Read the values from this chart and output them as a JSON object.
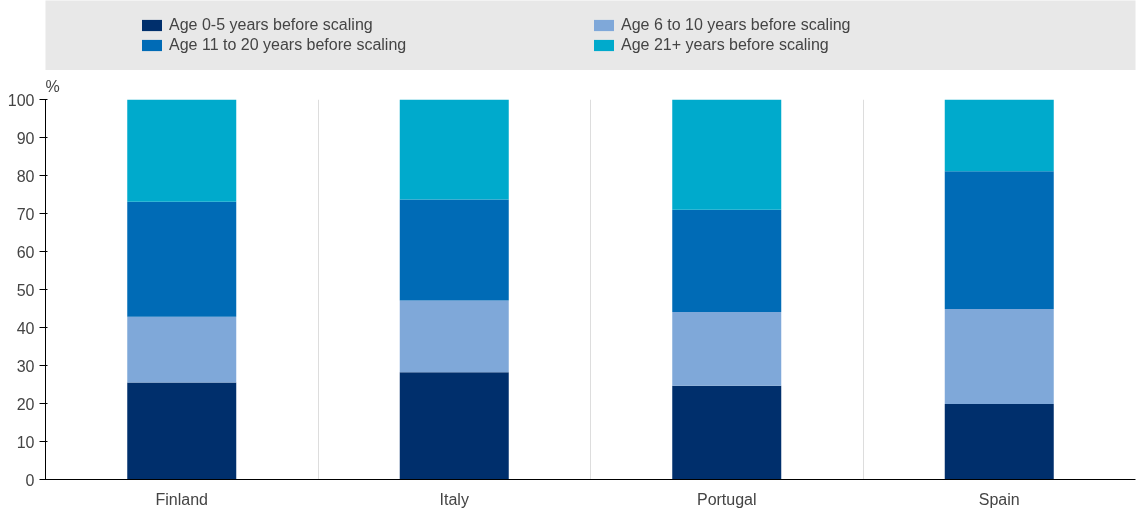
{
  "chart_data": {
    "type": "bar",
    "stacked": true,
    "ylabel": "%",
    "categories": [
      "Finland",
      "Italy",
      "Portugal",
      "Spain"
    ],
    "series": [
      {
        "name": "Age 0-5 years before scaling",
        "color": "#002f6c",
        "values": [
          25.5,
          28.2,
          24.7,
          19.9
        ]
      },
      {
        "name": "Age 6 to 10 years before scaling",
        "color": "#7fa8d9",
        "values": [
          17.3,
          18.9,
          19.4,
          25.0
        ]
      },
      {
        "name": "Age 11 to 20 years before scaling",
        "color": "#006bb6",
        "values": [
          30.3,
          26.6,
          26.9,
          36.2
        ]
      },
      {
        "name": "Age 21+ years before scaling",
        "color": "#00aacc",
        "values": [
          26.9,
          26.3,
          29.0,
          18.9
        ]
      }
    ],
    "ylim": [
      0,
      100
    ],
    "yticks": [
      0,
      10,
      20,
      30,
      40,
      50,
      60,
      70,
      80,
      90,
      100
    ],
    "grid": "x",
    "legend": "top"
  }
}
